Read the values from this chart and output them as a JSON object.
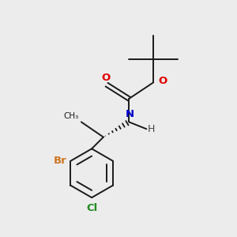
{
  "bg_color": "#ececec",
  "bond_color": "#1a1a1a",
  "atom_colors": {
    "O": "#e00000",
    "N": "#0000cc",
    "Br": "#cc7722",
    "Cl": "#228b22",
    "H": "#444444",
    "C": "#1a1a1a"
  },
  "fig_size": [
    3.0,
    3.0
  ],
  "dpi": 100
}
